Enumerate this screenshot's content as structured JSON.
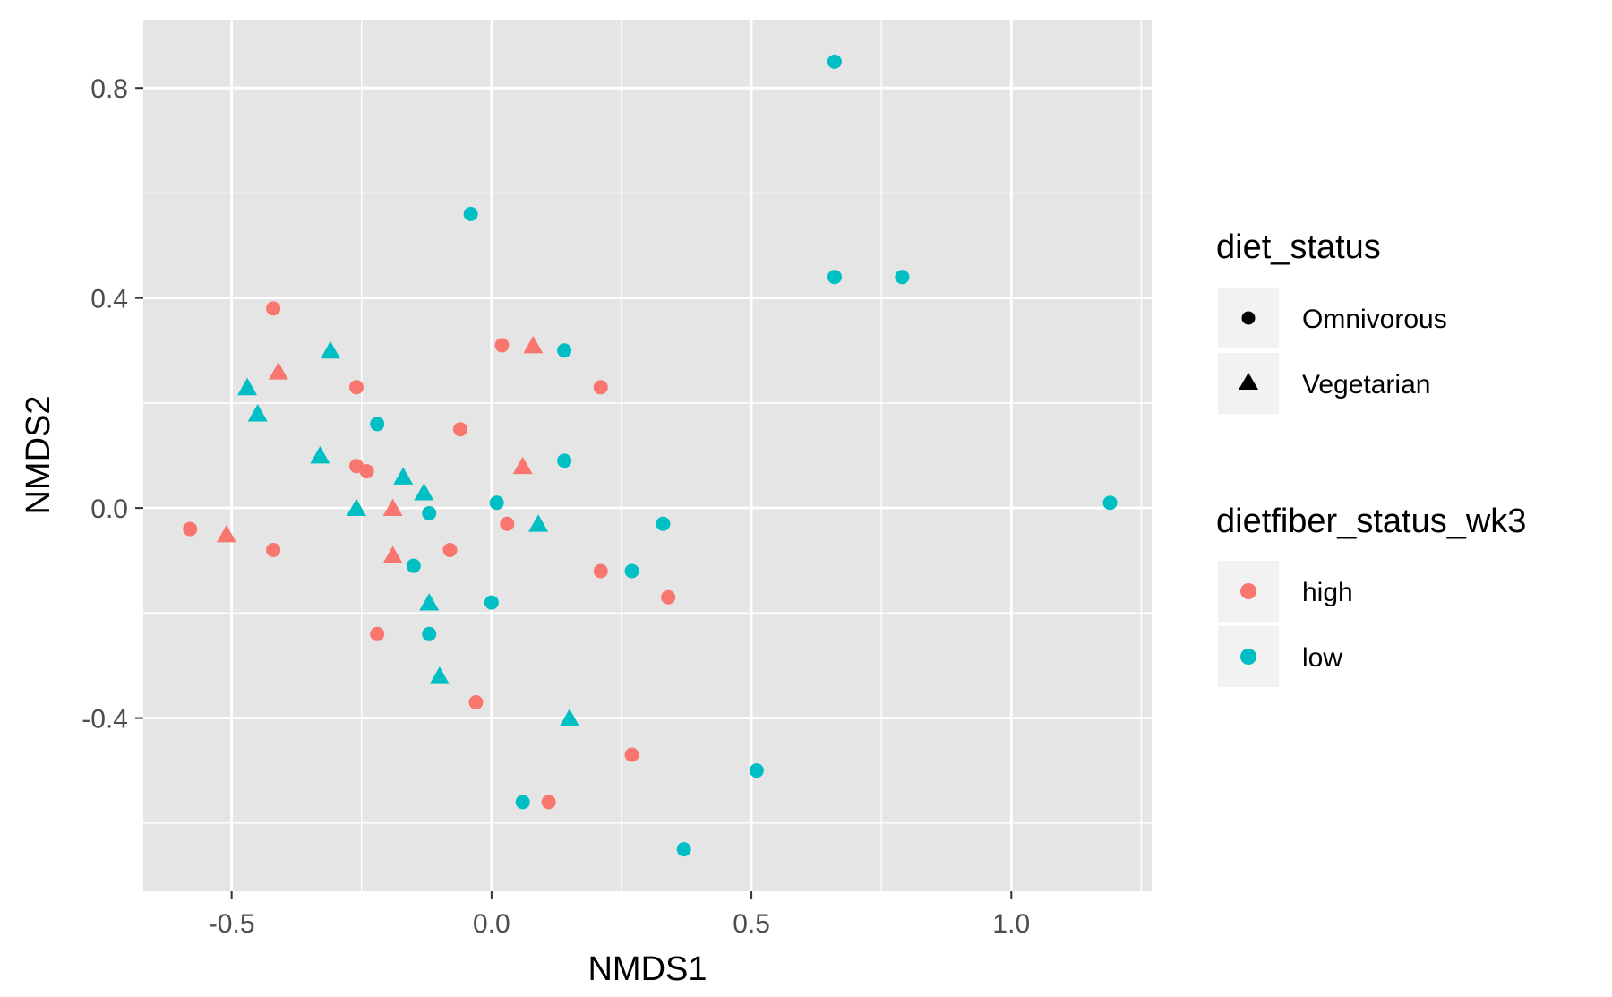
{
  "chart_data": {
    "type": "scatter",
    "title": "",
    "xlabel": "NMDS1",
    "ylabel": "NMDS2",
    "xlim": [
      -0.67,
      1.27
    ],
    "ylim": [
      -0.73,
      0.93
    ],
    "x_ticks": [
      {
        "value": -0.5,
        "label": "-0.5"
      },
      {
        "value": 0.0,
        "label": "0.0"
      },
      {
        "value": 0.5,
        "label": "0.5"
      },
      {
        "value": 1.0,
        "label": "1.0"
      }
    ],
    "y_ticks": [
      {
        "value": -0.4,
        "label": "-0.4"
      },
      {
        "value": 0.0,
        "label": "0.0"
      },
      {
        "value": 0.4,
        "label": "0.4"
      },
      {
        "value": 0.8,
        "label": "0.8"
      }
    ],
    "grid": true,
    "panel_background": "#e5e5e5",
    "legend_position": "right",
    "legends": [
      {
        "title": "diet_status",
        "entries": [
          {
            "label": "Omnivorous",
            "shape": "circle"
          },
          {
            "label": "Vegetarian",
            "shape": "triangle"
          }
        ]
      },
      {
        "title": "dietfiber_status_wk3",
        "entries": [
          {
            "label": "high",
            "color": "#F8766D"
          },
          {
            "label": "low",
            "color": "#00BFC4"
          }
        ]
      }
    ],
    "series": [
      {
        "name": "high",
        "color": "#F8766D",
        "points": [
          {
            "x": -0.42,
            "y": 0.38,
            "shape": "circle"
          },
          {
            "x": -0.41,
            "y": 0.26,
            "shape": "triangle"
          },
          {
            "x": 0.02,
            "y": 0.31,
            "shape": "circle"
          },
          {
            "x": 0.08,
            "y": 0.31,
            "shape": "triangle"
          },
          {
            "x": -0.26,
            "y": 0.23,
            "shape": "circle"
          },
          {
            "x": 0.21,
            "y": 0.23,
            "shape": "circle"
          },
          {
            "x": -0.06,
            "y": 0.15,
            "shape": "circle"
          },
          {
            "x": -0.26,
            "y": 0.08,
            "shape": "circle"
          },
          {
            "x": -0.24,
            "y": 0.07,
            "shape": "circle"
          },
          {
            "x": 0.06,
            "y": 0.08,
            "shape": "triangle"
          },
          {
            "x": -0.19,
            "y": 0.0,
            "shape": "triangle"
          },
          {
            "x": -0.58,
            "y": -0.04,
            "shape": "circle"
          },
          {
            "x": -0.51,
            "y": -0.05,
            "shape": "triangle"
          },
          {
            "x": 0.03,
            "y": -0.03,
            "shape": "circle"
          },
          {
            "x": -0.42,
            "y": -0.08,
            "shape": "circle"
          },
          {
            "x": -0.08,
            "y": -0.08,
            "shape": "circle"
          },
          {
            "x": -0.19,
            "y": -0.09,
            "shape": "triangle"
          },
          {
            "x": 0.21,
            "y": -0.12,
            "shape": "circle"
          },
          {
            "x": 0.34,
            "y": -0.17,
            "shape": "circle"
          },
          {
            "x": -0.22,
            "y": -0.24,
            "shape": "circle"
          },
          {
            "x": -0.03,
            "y": -0.37,
            "shape": "circle"
          },
          {
            "x": 0.27,
            "y": -0.47,
            "shape": "circle"
          },
          {
            "x": 0.11,
            "y": -0.56,
            "shape": "circle"
          }
        ]
      },
      {
        "name": "low",
        "color": "#00BFC4",
        "points": [
          {
            "x": 0.66,
            "y": 0.85,
            "shape": "circle"
          },
          {
            "x": -0.04,
            "y": 0.56,
            "shape": "circle"
          },
          {
            "x": 0.66,
            "y": 0.44,
            "shape": "circle"
          },
          {
            "x": 0.79,
            "y": 0.44,
            "shape": "circle"
          },
          {
            "x": -0.31,
            "y": 0.3,
            "shape": "triangle"
          },
          {
            "x": 0.14,
            "y": 0.3,
            "shape": "circle"
          },
          {
            "x": -0.47,
            "y": 0.23,
            "shape": "triangle"
          },
          {
            "x": -0.45,
            "y": 0.18,
            "shape": "triangle"
          },
          {
            "x": -0.22,
            "y": 0.16,
            "shape": "circle"
          },
          {
            "x": -0.33,
            "y": 0.1,
            "shape": "triangle"
          },
          {
            "x": 0.14,
            "y": 0.09,
            "shape": "circle"
          },
          {
            "x": -0.17,
            "y": 0.06,
            "shape": "triangle"
          },
          {
            "x": -0.13,
            "y": 0.03,
            "shape": "triangle"
          },
          {
            "x": 0.01,
            "y": 0.01,
            "shape": "circle"
          },
          {
            "x": -0.12,
            "y": -0.01,
            "shape": "circle"
          },
          {
            "x": -0.26,
            "y": 0.0,
            "shape": "triangle"
          },
          {
            "x": 1.19,
            "y": 0.01,
            "shape": "circle"
          },
          {
            "x": 0.33,
            "y": -0.03,
            "shape": "circle"
          },
          {
            "x": 0.09,
            "y": -0.03,
            "shape": "triangle"
          },
          {
            "x": -0.15,
            "y": -0.11,
            "shape": "circle"
          },
          {
            "x": 0.27,
            "y": -0.12,
            "shape": "circle"
          },
          {
            "x": 0.0,
            "y": -0.18,
            "shape": "circle"
          },
          {
            "x": -0.12,
            "y": -0.18,
            "shape": "triangle"
          },
          {
            "x": -0.12,
            "y": -0.24,
            "shape": "circle"
          },
          {
            "x": -0.1,
            "y": -0.32,
            "shape": "triangle"
          },
          {
            "x": 0.15,
            "y": -0.4,
            "shape": "triangle"
          },
          {
            "x": 0.51,
            "y": -0.5,
            "shape": "circle"
          },
          {
            "x": 0.06,
            "y": -0.56,
            "shape": "circle"
          },
          {
            "x": 0.37,
            "y": -0.65,
            "shape": "circle"
          }
        ]
      }
    ]
  }
}
